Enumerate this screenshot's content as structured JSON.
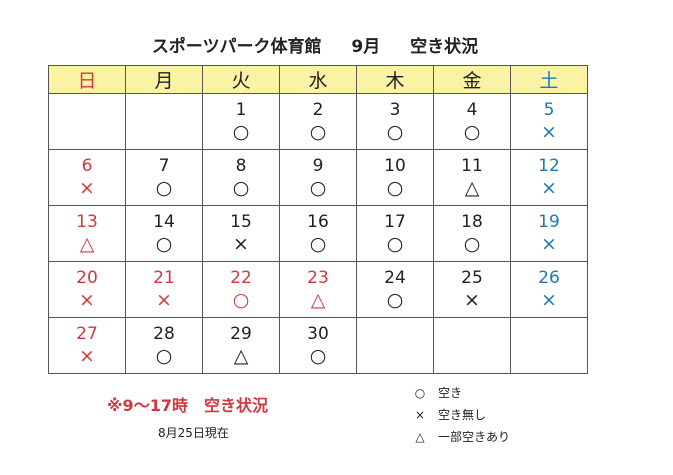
{
  "header": {
    "title": "スポーツパーク体育館",
    "month": "9月",
    "subtitle": "空き状況"
  },
  "calendar": {
    "weekdays": [
      {
        "label": "日",
        "color": "#d0393e"
      },
      {
        "label": "月",
        "color": "#222222"
      },
      {
        "label": "火",
        "color": "#222222"
      },
      {
        "label": "水",
        "color": "#222222"
      },
      {
        "label": "木",
        "color": "#222222"
      },
      {
        "label": "金",
        "color": "#222222"
      },
      {
        "label": "土",
        "color": "#1e78b4"
      }
    ],
    "header_background": "#fbf3a4",
    "weeks": [
      [
        null,
        null,
        {
          "day": 1,
          "status": "○",
          "color": "#222222"
        },
        {
          "day": 2,
          "status": "○",
          "color": "#222222"
        },
        {
          "day": 3,
          "status": "○",
          "color": "#222222"
        },
        {
          "day": 4,
          "status": "○",
          "color": "#222222"
        },
        {
          "day": 5,
          "status": "×",
          "color": "#1e78b4"
        }
      ],
      [
        {
          "day": 6,
          "status": "×",
          "color": "#d0393e"
        },
        {
          "day": 7,
          "status": "○",
          "color": "#222222"
        },
        {
          "day": 8,
          "status": "○",
          "color": "#222222"
        },
        {
          "day": 9,
          "status": "○",
          "color": "#222222"
        },
        {
          "day": 10,
          "status": "○",
          "color": "#222222"
        },
        {
          "day": 11,
          "status": "△",
          "color": "#222222"
        },
        {
          "day": 12,
          "status": "×",
          "color": "#1e78b4"
        }
      ],
      [
        {
          "day": 13,
          "status": "△",
          "color": "#d0393e"
        },
        {
          "day": 14,
          "status": "○",
          "color": "#222222"
        },
        {
          "day": 15,
          "status": "×",
          "color": "#222222"
        },
        {
          "day": 16,
          "status": "○",
          "color": "#222222"
        },
        {
          "day": 17,
          "status": "○",
          "color": "#222222"
        },
        {
          "day": 18,
          "status": "○",
          "color": "#222222"
        },
        {
          "day": 19,
          "status": "×",
          "color": "#1e78b4"
        }
      ],
      [
        {
          "day": 20,
          "status": "×",
          "color": "#d0393e"
        },
        {
          "day": 21,
          "status": "×",
          "color": "#d0393e"
        },
        {
          "day": 22,
          "status": "○",
          "color": "#d0393e"
        },
        {
          "day": 23,
          "status": "△",
          "color": "#d0393e"
        },
        {
          "day": 24,
          "status": "○",
          "color": "#222222"
        },
        {
          "day": 25,
          "status": "×",
          "color": "#222222"
        },
        {
          "day": 26,
          "status": "×",
          "color": "#1e78b4"
        }
      ],
      [
        {
          "day": 27,
          "status": "×",
          "color": "#d0393e"
        },
        {
          "day": 28,
          "status": "○",
          "color": "#222222"
        },
        {
          "day": 29,
          "status": "△",
          "color": "#222222"
        },
        {
          "day": 30,
          "status": "○",
          "color": "#222222"
        },
        null,
        null,
        null
      ]
    ]
  },
  "note": "※9～17時　空き状況",
  "as_of": "8月25日現在",
  "legend": [
    {
      "symbol": "○",
      "label": "空き"
    },
    {
      "symbol": "×",
      "label": "空き無し"
    },
    {
      "symbol": "△",
      "label": "一部空きあり"
    }
  ]
}
